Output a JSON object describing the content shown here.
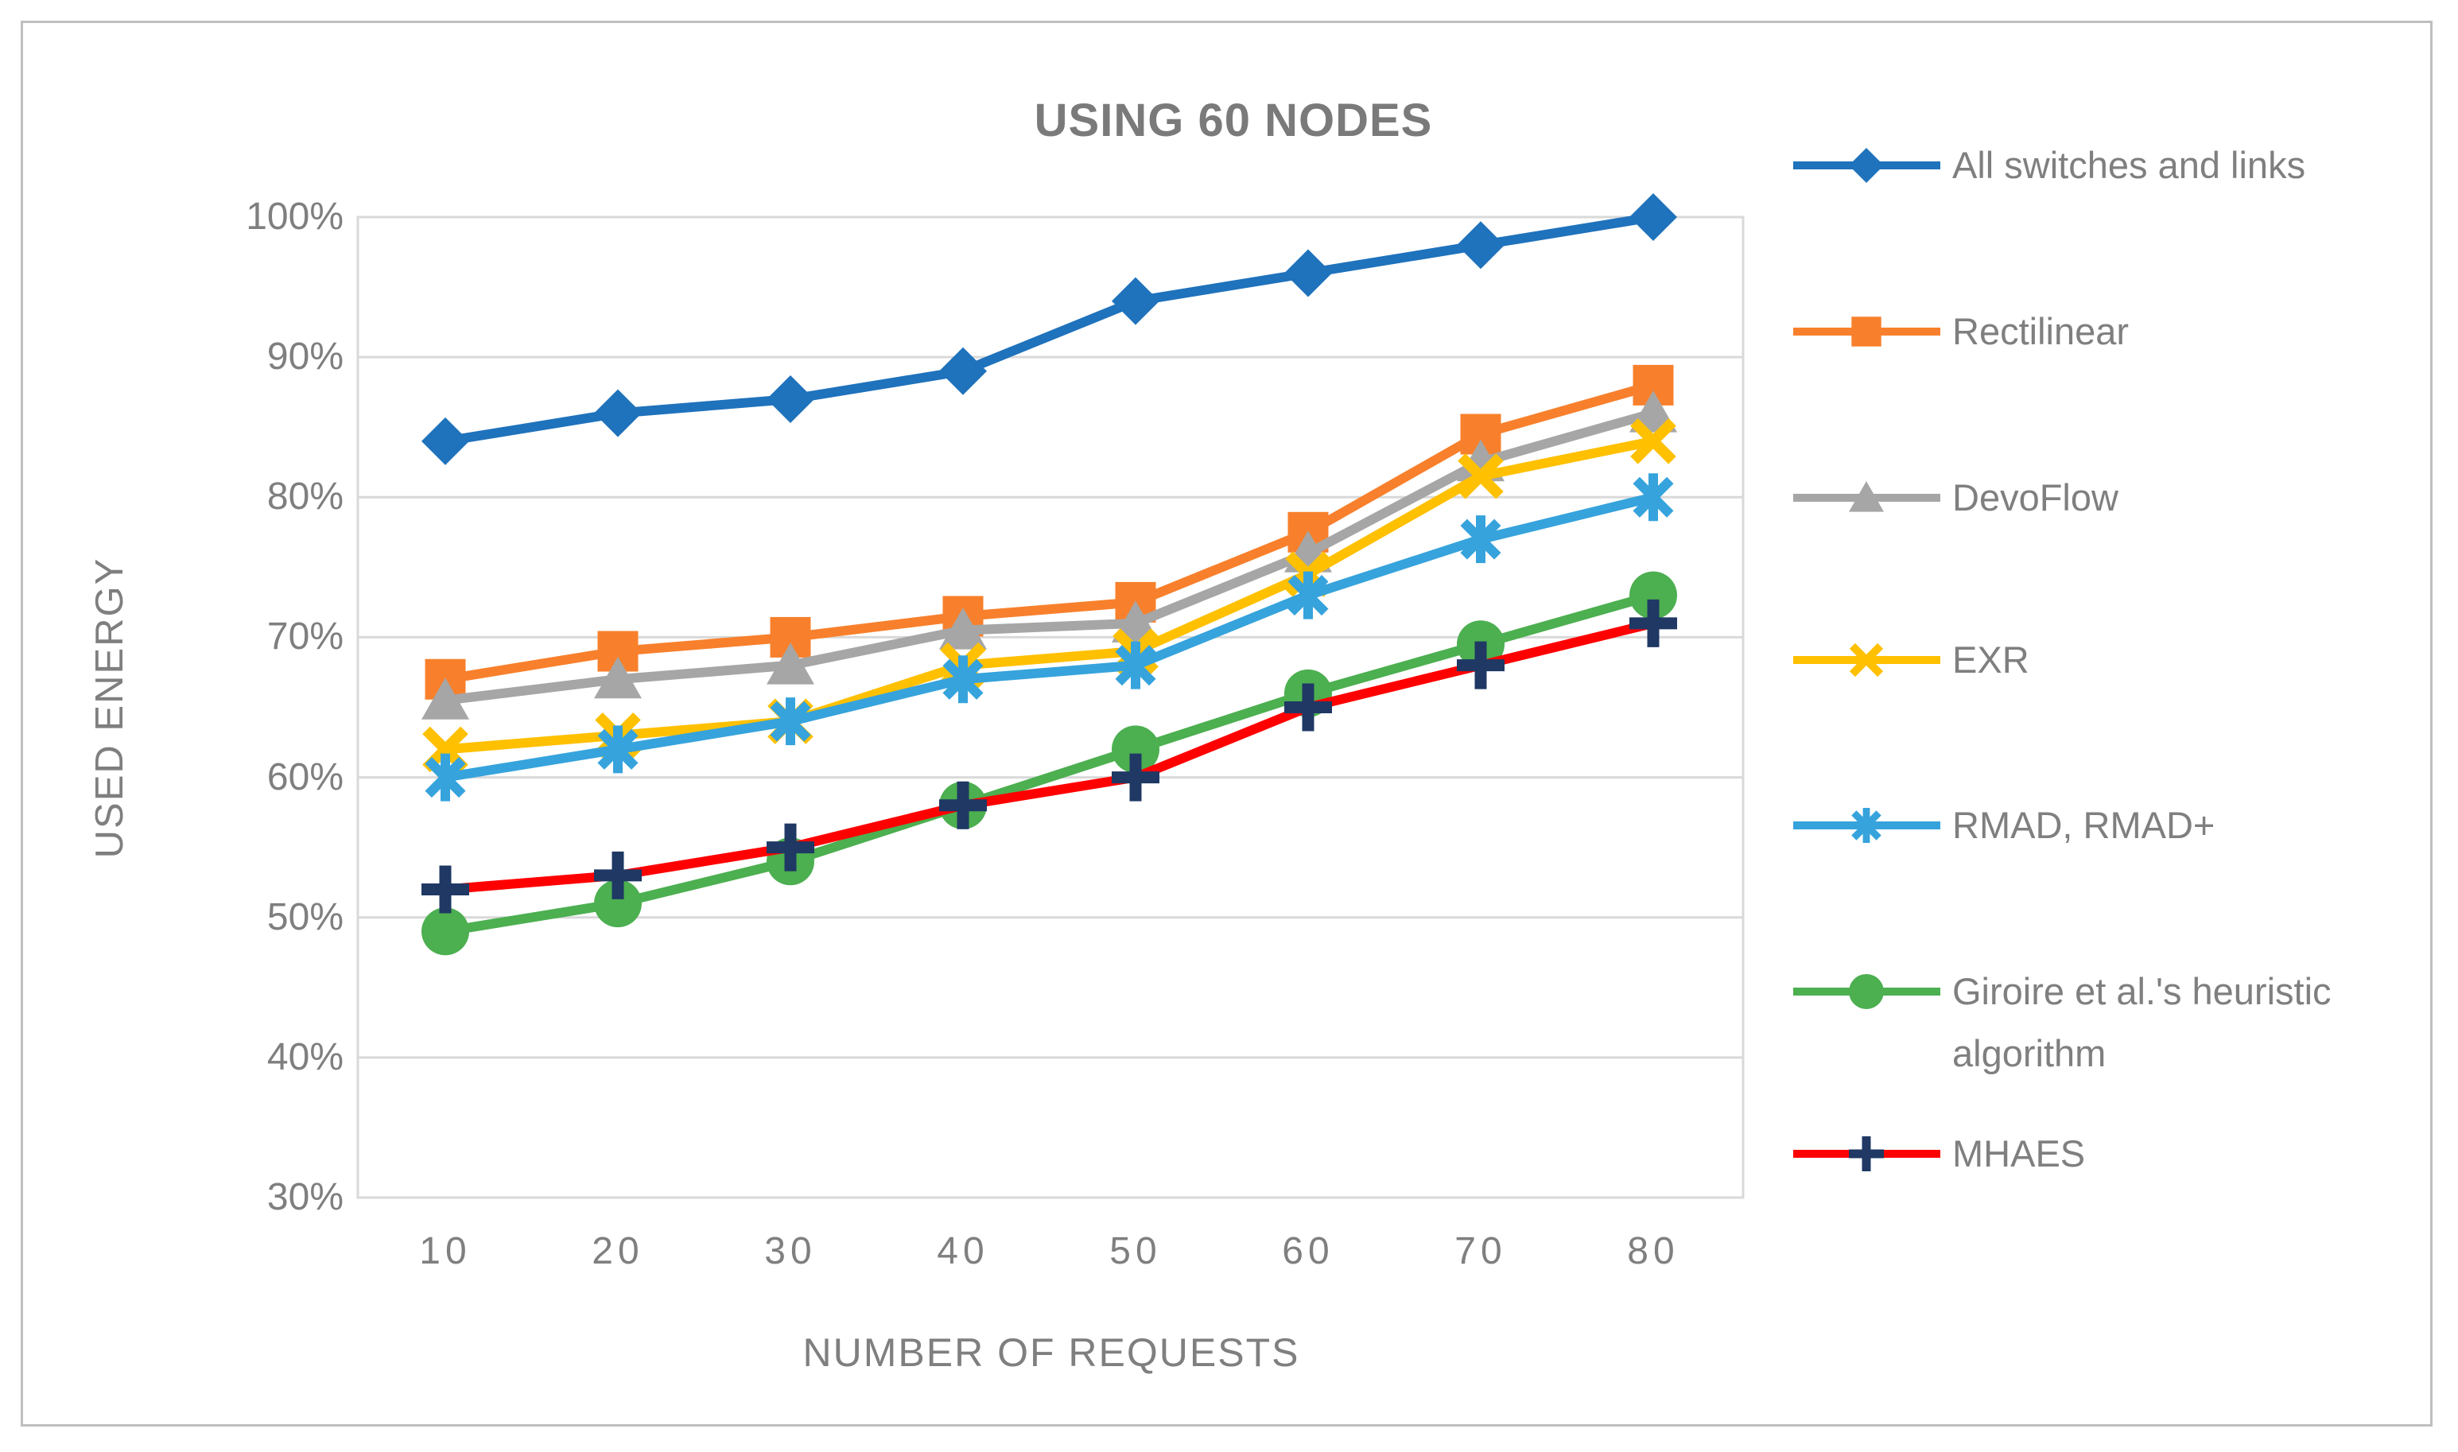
{
  "figure": {
    "background": "#FFFFFF",
    "border_color": "#BFBFBF",
    "gridline_color": "#D9D9D9",
    "text_color": "#7F7F7F"
  },
  "chart_data": {
    "type": "line",
    "title": "USING 60 NODES",
    "xlabel": "NUMBER OF REQUESTS",
    "ylabel": "USED ENERGY",
    "x": [
      10,
      20,
      30,
      40,
      50,
      60,
      70,
      80
    ],
    "y_axis": {
      "min": 30,
      "max": 100,
      "step": 10,
      "format": "percent"
    },
    "y_ticks": [
      "100%",
      "90%",
      "80%",
      "70%",
      "60%",
      "50%",
      "40%",
      "30%"
    ],
    "grid": true,
    "legend_position": "right",
    "series": [
      {
        "name": "All switches and links",
        "marker": "diamond",
        "color": "#1F72BC",
        "values": [
          84,
          86,
          87,
          89,
          94,
          96,
          98,
          100
        ]
      },
      {
        "name": "Rectilinear",
        "marker": "square",
        "color": "#F8802C",
        "values": [
          67,
          69,
          70,
          71.5,
          72.5,
          77.5,
          84.5,
          88
        ]
      },
      {
        "name": "DevoFlow",
        "marker": "triangle",
        "color": "#A6A6A6",
        "values": [
          65.5,
          67,
          68,
          70.5,
          71,
          76,
          82.5,
          86
        ]
      },
      {
        "name": "EXR",
        "marker": "x",
        "color": "#FFC000",
        "values": [
          62,
          63,
          64,
          68,
          69,
          74.5,
          81.5,
          84
        ]
      },
      {
        "name": "RMAD, RMAD+",
        "marker": "asterisk",
        "color": "#36A3DC",
        "values": [
          60,
          62,
          64,
          67,
          68,
          73,
          77,
          80
        ]
      },
      {
        "name": "Giroire et al.'s heuristic algorithm",
        "marker": "circle",
        "color": "#4CAF50",
        "values": [
          49,
          51,
          54,
          58,
          62,
          66,
          69.5,
          73
        ]
      },
      {
        "name": "MHAES",
        "marker": "plus",
        "color": "#FF0000",
        "marker_color": "#1F3864",
        "values": [
          52,
          53,
          55,
          58,
          60,
          65,
          68,
          71
        ]
      }
    ]
  }
}
